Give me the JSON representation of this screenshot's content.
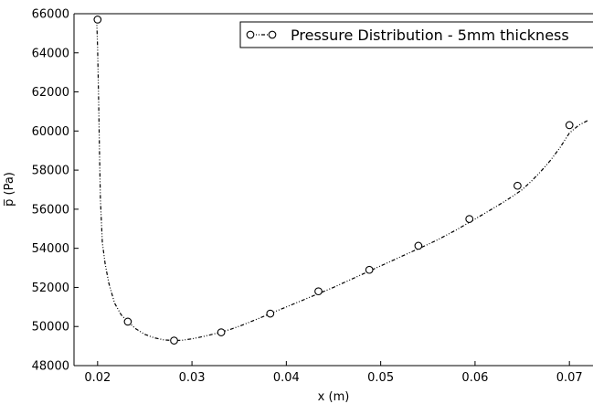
{
  "chart_data": {
    "type": "line",
    "title": "",
    "xlabel": "x (m)",
    "ylabel": "p̅ (Pa)",
    "xlim": [
      0.0175,
      0.0725
    ],
    "ylim": [
      48000,
      66000
    ],
    "x_ticks": [
      0.02,
      0.03,
      0.04,
      0.05,
      0.06,
      0.07
    ],
    "x_tick_labels": [
      "0.02",
      "0.03",
      "0.04",
      "0.05",
      "0.06",
      "0.07"
    ],
    "y_ticks": [
      48000,
      50000,
      52000,
      54000,
      56000,
      58000,
      60000,
      62000,
      64000,
      66000
    ],
    "y_tick_labels": [
      "48000",
      "50000",
      "52000",
      "54000",
      "56000",
      "58000",
      "60000",
      "62000",
      "64000",
      "66000"
    ],
    "grid": false,
    "legend": {
      "position": "top-right",
      "entries": [
        "Pressure Distribution - 5mm thickness"
      ]
    },
    "colors": {
      "line": "#000000",
      "axis": "#000000",
      "background": "#ffffff"
    },
    "series": [
      {
        "name": "Pressure Distribution - 5mm thickness",
        "line_style": "dash-dot-dot",
        "marker": "circle",
        "line_x": [
          0.0199,
          0.02,
          0.0201,
          0.0202,
          0.0203,
          0.0205,
          0.0208,
          0.0212,
          0.0218,
          0.0225,
          0.0232,
          0.024,
          0.025,
          0.026,
          0.027,
          0.028,
          0.029,
          0.03,
          0.031,
          0.032,
          0.033,
          0.034,
          0.035,
          0.036,
          0.037,
          0.038,
          0.039,
          0.04,
          0.041,
          0.042,
          0.043,
          0.044,
          0.045,
          0.046,
          0.047,
          0.048,
          0.049,
          0.05,
          0.051,
          0.052,
          0.053,
          0.054,
          0.055,
          0.056,
          0.057,
          0.058,
          0.059,
          0.06,
          0.061,
          0.062,
          0.063,
          0.064,
          0.065,
          0.066,
          0.067,
          0.068,
          0.069,
          0.07,
          0.071,
          0.072
        ],
        "line_y": [
          65700,
          64300,
          61700,
          58900,
          56500,
          54300,
          53200,
          52200,
          51200,
          50600,
          50250,
          49900,
          49600,
          49420,
          49320,
          49280,
          49300,
          49370,
          49470,
          49580,
          49700,
          49840,
          50010,
          50200,
          50400,
          50600,
          50800,
          51000,
          51200,
          51400,
          51600,
          51800,
          52000,
          52220,
          52440,
          52660,
          52880,
          53100,
          53320,
          53540,
          53760,
          53980,
          54200,
          54430,
          54680,
          54940,
          55220,
          55500,
          55780,
          56070,
          56360,
          56670,
          57000,
          57450,
          57950,
          58500,
          59150,
          59900,
          60300,
          60550
        ],
        "marker_x": [
          0.02,
          0.0232,
          0.0281,
          0.0331,
          0.0383,
          0.0434,
          0.0488,
          0.054,
          0.0594,
          0.0645,
          0.07
        ],
        "marker_y": [
          65700,
          50250,
          49280,
          49700,
          50660,
          51800,
          52900,
          54130,
          55500,
          57200,
          60300
        ]
      }
    ]
  }
}
